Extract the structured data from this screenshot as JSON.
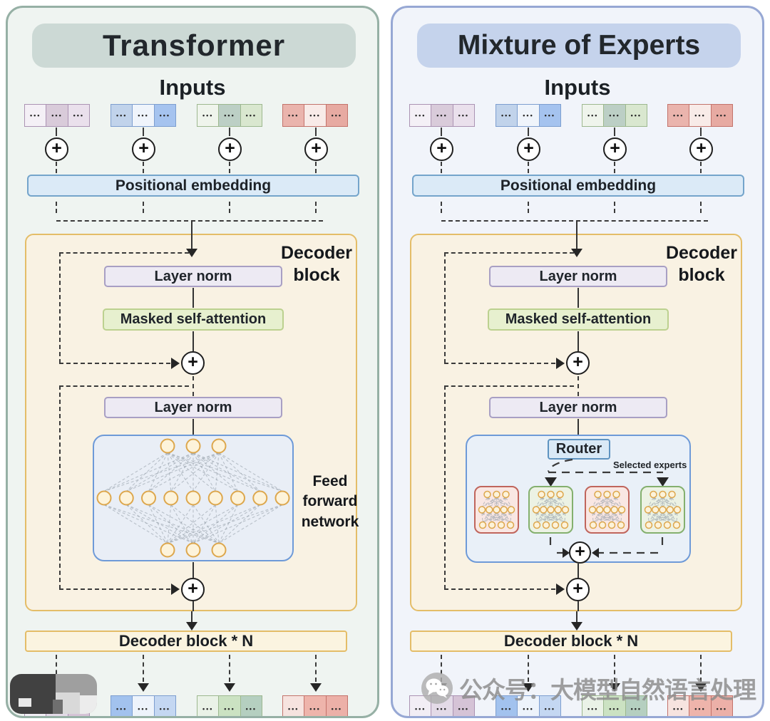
{
  "symbols": {
    "plus": "+",
    "dots": "•••"
  },
  "watermark": {
    "text": "公众号：大模型自然语言处理",
    "icon": "wechat-logo"
  },
  "colors": {
    "decoder_bg": "#f9f2e3",
    "decoder_border": "#e4bd68",
    "layer_norm_bg": "#edeaf3",
    "layer_norm_border": "#a89fc4",
    "attention_bg": "#e7f0cf",
    "attention_border": "#bcd18f",
    "embedding_bg": "#dbeaf7",
    "embedding_border": "#74a4cb",
    "network_box_bg": "#e9eef6",
    "network_box_border": "#6e9ad8",
    "router_bg": "#d9e9f6",
    "router_border": "#5e93c0",
    "expert_red_bg": "#f9e7e3",
    "expert_red_border": "#c0655c",
    "expert_green_bg": "#ecf2e4",
    "expert_green_border": "#84b06e",
    "node_fill": "#fdf3da",
    "node_stroke": "#dda74d",
    "bar_bg": "#fbf4e0"
  },
  "panels": [
    {
      "title": "Transformer",
      "bg": "#eff4f1",
      "accent_border": "#96b0a5",
      "banner_bg": "#ccd9d5",
      "inputs_label": "Inputs",
      "positional_embedding": "Positional embedding",
      "decoder_label": [
        "Decoder",
        "block"
      ],
      "layer_norm1": "Layer norm",
      "masked_attention": "Masked self-attention",
      "layer_norm2": "Layer norm",
      "ffn_label": [
        "Feed",
        "forward",
        "network"
      ],
      "decoder_n": "Decoder block * N",
      "input_tokens": [
        {
          "border": "#ab93b3",
          "cells": [
            "#f4f0f6",
            "#d9cbda",
            "#eae0ec"
          ]
        },
        {
          "border": "#7d9ecf",
          "cells": [
            "#c1d3eb",
            "#eff4fb",
            "#a5c3ef"
          ]
        },
        {
          "border": "#9db88f",
          "cells": [
            "#eff4ec",
            "#bccfc5",
            "#d9e7cf"
          ]
        },
        {
          "border": "#c3736b",
          "cells": [
            "#eab4ad",
            "#f8ebe8",
            "#e7aaa2"
          ]
        }
      ],
      "output_tokens": [
        {
          "border": "#ab93b3",
          "cells": [
            "#f2eef5",
            "#e3dae7",
            "#d5c3d6"
          ]
        },
        {
          "border": "#7d9ecf",
          "cells": [
            "#a2c2ee",
            "#edf3fb",
            "#c4d7f2"
          ]
        },
        {
          "border": "#9db88f",
          "cells": [
            "#eaf2e7",
            "#cbe2c2",
            "#b5cfc0"
          ]
        },
        {
          "border": "#c3736b",
          "cells": [
            "#f6e3df",
            "#eeb4ab",
            "#ecb0a8"
          ]
        }
      ]
    },
    {
      "title": "Mixture of Experts",
      "bg": "#f1f4fa",
      "accent_border": "#97a8d4",
      "banner_bg": "#c5d3ec",
      "inputs_label": "Inputs",
      "positional_embedding": "Positional embedding",
      "decoder_label": [
        "Decoder",
        "block"
      ],
      "layer_norm1": "Layer norm",
      "masked_attention": "Masked self-attention",
      "layer_norm2": "Layer norm",
      "router_label": "Router",
      "selected_experts_label": "Selected experts",
      "experts": [
        "red",
        "green",
        "red",
        "green"
      ],
      "decoder_n": "Decoder block * N",
      "input_tokens": [
        {
          "border": "#ab93b3",
          "cells": [
            "#f4f0f6",
            "#d9cbda",
            "#eae0ec"
          ]
        },
        {
          "border": "#7d9ecf",
          "cells": [
            "#c1d3eb",
            "#eff4fb",
            "#a5c3ef"
          ]
        },
        {
          "border": "#9db88f",
          "cells": [
            "#eff4ec",
            "#bccfc5",
            "#d9e7cf"
          ]
        },
        {
          "border": "#c3736b",
          "cells": [
            "#eab4ad",
            "#f8ebe8",
            "#e7aaa2"
          ]
        }
      ],
      "output_tokens": [
        {
          "border": "#ab93b3",
          "cells": [
            "#f2eef5",
            "#e3dae7",
            "#d5c3d6"
          ]
        },
        {
          "border": "#7d9ecf",
          "cells": [
            "#a2c2ee",
            "#edf3fb",
            "#c4d7f2"
          ]
        },
        {
          "border": "#9db88f",
          "cells": [
            "#eaf2e7",
            "#cbe2c2",
            "#b5cfc0"
          ]
        },
        {
          "border": "#c3736b",
          "cells": [
            "#f6e3df",
            "#eeb4ab",
            "#ecb0a8"
          ]
        }
      ]
    }
  ]
}
